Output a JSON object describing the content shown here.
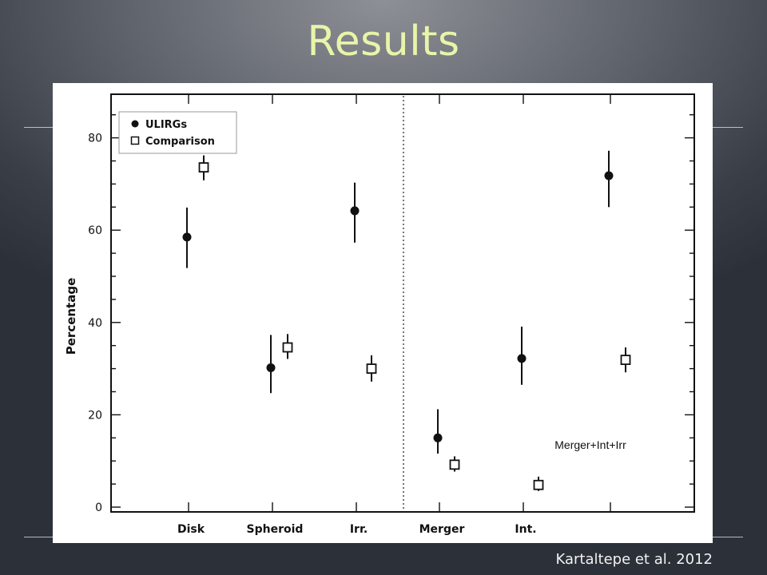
{
  "slide": {
    "title": "Results",
    "citation": "Kartaltepe et al. 2012"
  },
  "chart_data": {
    "type": "scatter",
    "ylabel": "Percentage",
    "xlabel": "",
    "ylim": [
      0,
      90
    ],
    "yticks": [
      0,
      20,
      40,
      60,
      80
    ],
    "categories": [
      "Disk",
      "Spheroid",
      "Irr.",
      "Merger",
      "Int.",
      "Merger+Int+Irr"
    ],
    "divider_after_category": 2,
    "grid": false,
    "legend_position": "top-left",
    "series": [
      {
        "name": "ULIRGs",
        "marker": "filled-circle",
        "values": [
          58.5,
          30.2,
          64.2,
          15.0,
          32.2,
          71.8
        ],
        "err_low": [
          51.8,
          24.7,
          57.3,
          11.6,
          26.5,
          65.0
        ],
        "err_high": [
          64.9,
          37.3,
          70.3,
          21.2,
          39.1,
          77.2
        ]
      },
      {
        "name": "Comparison",
        "marker": "open-square",
        "values": [
          73.6,
          34.6,
          30.0,
          9.2,
          4.8,
          31.9
        ],
        "err_low": [
          70.8,
          32.1,
          27.2,
          7.7,
          3.5,
          29.2
        ],
        "err_high": [
          76.2,
          37.5,
          32.9,
          11.0,
          6.6,
          34.6
        ]
      }
    ]
  }
}
